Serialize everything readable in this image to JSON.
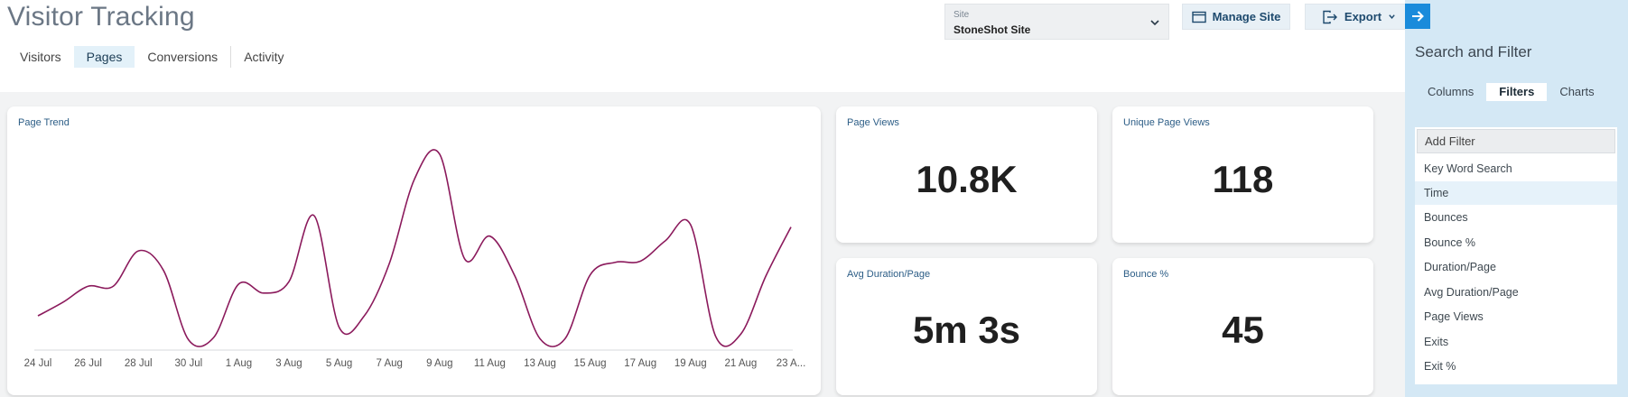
{
  "header": {
    "title": "Visitor Tracking",
    "tabs": [
      {
        "label": "Visitors"
      },
      {
        "label": "Pages"
      },
      {
        "label": "Conversions"
      },
      {
        "label": "Activity"
      }
    ],
    "active_tab": "Pages",
    "site_select": {
      "label": "Site",
      "value": "StoneShot Site"
    },
    "manage_site_label": "Manage Site",
    "export_label": "Export"
  },
  "page_trend": {
    "title": "Page Trend",
    "x_labels": [
      "24 Jul",
      "26 Jul",
      "28 Jul",
      "30 Jul",
      "1 Aug",
      "3 Aug",
      "5 Aug",
      "7 Aug",
      "9 Aug",
      "11 Aug",
      "13 Aug",
      "15 Aug",
      "17 Aug",
      "19 Aug",
      "21 Aug",
      "23 A..."
    ]
  },
  "chart_data": {
    "type": "line",
    "title": "Page Trend",
    "xlabel": "",
    "ylabel": "",
    "grid": false,
    "line_color": "#8b1a5c",
    "x": [
      "24 Jul",
      "25 Jul",
      "26 Jul",
      "27 Jul",
      "28 Jul",
      "29 Jul",
      "30 Jul",
      "31 Jul",
      "1 Aug",
      "2 Aug",
      "3 Aug",
      "4 Aug",
      "5 Aug",
      "6 Aug",
      "7 Aug",
      "8 Aug",
      "9 Aug",
      "10 Aug",
      "11 Aug",
      "12 Aug",
      "13 Aug",
      "14 Aug",
      "15 Aug",
      "16 Aug",
      "17 Aug",
      "18 Aug",
      "19 Aug",
      "20 Aug",
      "21 Aug",
      "22 Aug",
      "23 Aug"
    ],
    "series": [
      {
        "values": [
          300,
          420,
          560,
          560,
          870,
          700,
          90,
          110,
          580,
          500,
          600,
          1180,
          200,
          300,
          760,
          1500,
          1720,
          800,
          1000,
          650,
          100,
          100,
          660,
          770,
          780,
          960,
          1100,
          120,
          140,
          650,
          1080
        ]
      }
    ],
    "ylim": [
      0,
      1900
    ]
  },
  "metrics": {
    "page_views": {
      "label": "Page Views",
      "value": "10.8K"
    },
    "unique_page_views": {
      "label": "Unique Page Views",
      "value": "118"
    },
    "avg_duration": {
      "label": "Avg Duration/Page",
      "value": "5m 3s"
    },
    "bounce": {
      "label": "Bounce %",
      "value": "45"
    }
  },
  "side_panel": {
    "title": "Search and Filter",
    "tabs": [
      {
        "label": "Columns"
      },
      {
        "label": "Filters"
      },
      {
        "label": "Charts"
      }
    ],
    "active_tab": "Filters",
    "add_filter_placeholder": "Add Filter",
    "filter_options": [
      "Key Word Search",
      "Time",
      "Bounces",
      "Bounce %",
      "Duration/Page",
      "Avg Duration/Page",
      "Page Views",
      "Exits",
      "Exit %"
    ],
    "highlighted_option": "Time"
  },
  "colors": {
    "accent": "#1a8bdb",
    "panel_bg": "#d4e8f5",
    "line": "#8b1a5c"
  }
}
